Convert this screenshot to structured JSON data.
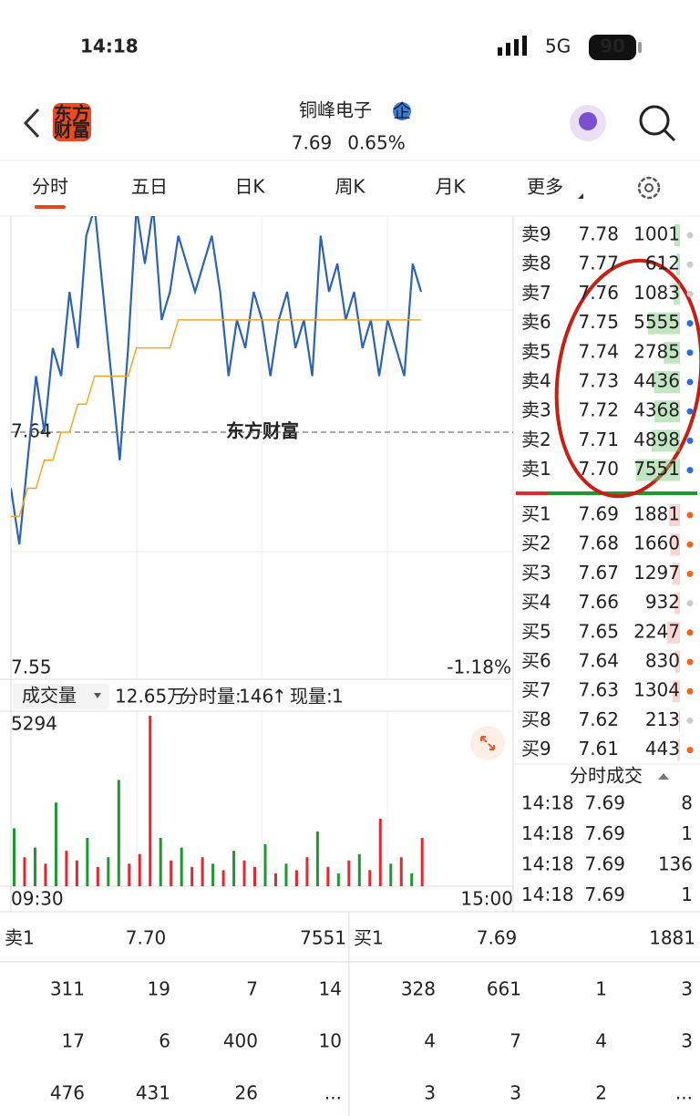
{
  "status_bar": {
    "time": "14:18",
    "network": "5G",
    "battery": 90
  },
  "header": {
    "logo": [
      "东方",
      "财富"
    ],
    "title": "铜峰电子",
    "badge": "企",
    "price": 7.69,
    "change": "0.65%"
  },
  "tabs": {
    "items": [
      "分时",
      "五日",
      "日K",
      "周K",
      "月K",
      "更多"
    ],
    "active": 0
  },
  "chart_data": [
    {
      "type": "line",
      "watermark": "东方财富",
      "x": [
        0,
        4,
        8,
        12,
        16,
        20,
        24,
        28,
        32,
        36,
        40,
        44,
        48,
        52,
        56,
        60,
        64,
        68,
        72,
        76,
        80,
        84,
        88,
        92,
        96,
        100,
        104,
        108,
        112,
        116,
        120,
        124,
        128,
        132,
        136,
        140,
        144,
        148,
        152,
        156,
        160,
        164,
        168,
        172,
        176,
        180,
        184,
        188,
        192,
        196
      ],
      "series": [
        {
          "color": "#2b63b8",
          "values": [
            7.62,
            7.6,
            7.63,
            7.66,
            7.64,
            7.67,
            7.66,
            7.69,
            7.67,
            7.71,
            7.72,
            7.69,
            7.66,
            7.63,
            7.67,
            7.72,
            7.7,
            7.72,
            7.68,
            7.69,
            7.71,
            7.7,
            7.69,
            7.7,
            7.71,
            7.69,
            7.66,
            7.68,
            7.67,
            7.69,
            7.68,
            7.66,
            7.68,
            7.69,
            7.67,
            7.68,
            7.66,
            7.71,
            7.69,
            7.7,
            7.68,
            7.69,
            7.67,
            7.68,
            7.66,
            7.68,
            7.67,
            7.66,
            7.7,
            7.69
          ]
        },
        {
          "color": "#f5a623",
          "values": [
            7.61,
            7.61,
            7.62,
            7.62,
            7.63,
            7.63,
            7.64,
            7.64,
            7.65,
            7.65,
            7.66,
            7.66,
            7.66,
            7.66,
            7.66,
            7.67,
            7.67,
            7.67,
            7.67,
            7.67,
            7.68,
            7.68,
            7.68,
            7.68,
            7.68,
            7.68,
            7.68,
            7.68,
            7.68,
            7.68,
            7.68,
            7.68,
            7.68,
            7.68,
            7.68,
            7.68,
            7.68,
            7.68,
            7.68,
            7.68,
            7.68,
            7.68,
            7.68,
            7.68,
            7.68,
            7.68,
            7.68,
            7.68,
            7.68,
            7.68
          ]
        }
      ],
      "xlim": [
        0,
        240
      ],
      "ylim": [
        7.55,
        7.73
      ],
      "reference": {
        "value": 7.64,
        "label": "7.64"
      },
      "yticks": [
        {
          "value": 7.55,
          "label": "7.55"
        }
      ],
      "bottom_change": "-1.18%"
    },
    {
      "type": "bar",
      "indicator": "成交量",
      "total": "12.65万",
      "interval_label": "分时量:",
      "interval_volume": 146,
      "arrow": "↑",
      "current_label": "现量:",
      "current_volume": 1,
      "x": [
        0,
        5,
        10,
        15,
        20,
        25,
        30,
        35,
        40,
        45,
        50,
        55,
        60,
        65,
        70,
        75,
        80,
        85,
        90,
        95,
        100,
        105,
        110,
        115,
        120,
        125,
        130,
        135,
        140,
        145,
        150,
        155,
        160,
        165,
        170,
        175,
        180,
        185,
        190,
        195
      ],
      "values": [
        1800,
        900,
        1200,
        700,
        2600,
        1100,
        800,
        1500,
        600,
        900,
        3300,
        700,
        1000,
        5294,
        1500,
        800,
        1200,
        600,
        900,
        700,
        500,
        1100,
        800,
        600,
        1300,
        400,
        700,
        500,
        900,
        1700,
        600,
        400,
        800,
        1000,
        500,
        2100,
        700,
        900,
        400,
        1500
      ],
      "colors": [
        "#1b9a2e",
        "#e8262d",
        "#1b9a2e",
        "#e8262d",
        "#1b9a2e",
        "#e8262d",
        "#e8262d",
        "#1b9a2e",
        "#e8262d",
        "#1b9a2e",
        "#1b9a2e",
        "#e8262d",
        "#e8262d",
        "#e8262d",
        "#1b9a2e",
        "#e8262d",
        "#1b9a2e",
        "#e8262d",
        "#e8262d",
        "#1b9a2e",
        "#e8262d",
        "#1b9a2e",
        "#e8262d",
        "#e8262d",
        "#1b9a2e",
        "#e8262d",
        "#1b9a2e",
        "#e8262d",
        "#e8262d",
        "#1b9a2e",
        "#e8262d",
        "#1b9a2e",
        "#e8262d",
        "#1b9a2e",
        "#e8262d",
        "#e8262d",
        "#1b9a2e",
        "#e8262d",
        "#1b9a2e",
        "#e8262d"
      ],
      "xlim": [
        0,
        240
      ],
      "ylim": [
        0,
        5294
      ],
      "yticks": [
        5294
      ],
      "xticks": [
        {
          "value": 0,
          "label": "09:30"
        },
        {
          "value": 240,
          "label": "15:00"
        }
      ]
    }
  ],
  "order_book": {
    "sells": [
      {
        "label": "卖9",
        "price": "7.78",
        "volume": 1001,
        "dot": "#cccccc"
      },
      {
        "label": "卖8",
        "price": "7.77",
        "volume": 612,
        "dot": "#cccccc"
      },
      {
        "label": "卖7",
        "price": "7.76",
        "volume": 1083,
        "dot": "#cccccc"
      },
      {
        "label": "卖6",
        "price": "7.75",
        "volume": 5555,
        "dot": "#2b6fd6"
      },
      {
        "label": "卖5",
        "price": "7.74",
        "volume": 2785,
        "dot": "#2b6fd6"
      },
      {
        "label": "卖4",
        "price": "7.73",
        "volume": 4436,
        "dot": "#2b6fd6"
      },
      {
        "label": "卖3",
        "price": "7.72",
        "volume": 4368,
        "dot": "#2b6fd6"
      },
      {
        "label": "卖2",
        "price": "7.71",
        "volume": 4898,
        "dot": "#2b6fd6"
      },
      {
        "label": "卖1",
        "price": "7.70",
        "volume": 7551,
        "dot": "#2b6fd6"
      }
    ],
    "buys": [
      {
        "label": "买1",
        "price": "7.69",
        "volume": 1881,
        "dot": "#f0641e"
      },
      {
        "label": "买2",
        "price": "7.68",
        "volume": 1660,
        "dot": "#f0641e"
      },
      {
        "label": "买3",
        "price": "7.67",
        "volume": 1297,
        "dot": "#f0641e"
      },
      {
        "label": "买4",
        "price": "7.66",
        "volume": 932,
        "dot": "#cccccc"
      },
      {
        "label": "买5",
        "price": "7.65",
        "volume": 2247,
        "dot": "#f0641e"
      },
      {
        "label": "买6",
        "price": "7.64",
        "volume": 830,
        "dot": "#f0641e"
      },
      {
        "label": "买7",
        "price": "7.63",
        "volume": 1304,
        "dot": "#f0641e"
      },
      {
        "label": "买8",
        "price": "7.62",
        "volume": 213,
        "dot": "#cccccc"
      },
      {
        "label": "买9",
        "price": "7.61",
        "volume": 443,
        "dot": "#f0641e"
      }
    ]
  },
  "trades": {
    "title": "分时成交",
    "rows": [
      {
        "time": "14:18",
        "price": "7.69",
        "volume": 8
      },
      {
        "time": "14:18",
        "price": "7.69",
        "volume": 1
      },
      {
        "time": "14:18",
        "price": "7.69",
        "volume": 136
      },
      {
        "time": "14:18",
        "price": "7.69",
        "volume": 1
      }
    ]
  },
  "summary": {
    "sell": {
      "label": "卖1",
      "price": "7.70",
      "volume": 7551,
      "queue": [
        [
          311,
          19,
          7,
          14
        ],
        [
          17,
          6,
          400,
          10
        ],
        [
          476,
          431,
          26,
          "..."
        ]
      ]
    },
    "buy": {
      "label": "买1",
      "price": "7.69",
      "volume": 1881,
      "queue": [
        [
          328,
          661,
          1,
          3
        ],
        [
          4,
          7,
          4,
          3
        ],
        [
          3,
          3,
          2,
          "..."
        ]
      ]
    }
  }
}
